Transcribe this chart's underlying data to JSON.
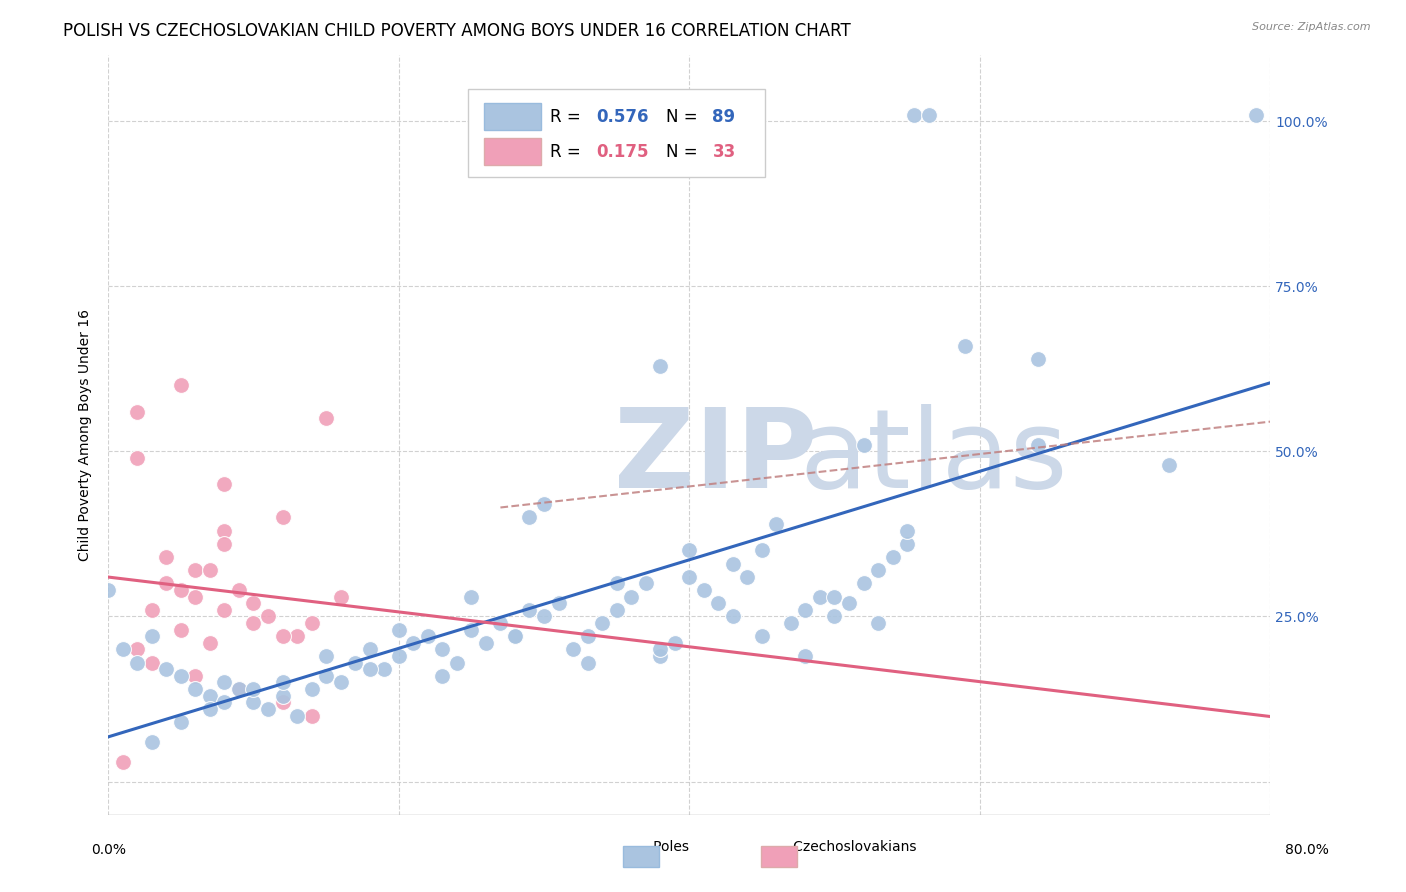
{
  "title": "POLISH VS CZECHOSLOVAKIAN CHILD POVERTY AMONG BOYS UNDER 16 CORRELATION CHART",
  "source": "Source: ZipAtlas.com",
  "ylabel": "Child Poverty Among Boys Under 16",
  "poles_R": 0.576,
  "poles_N": 89,
  "czech_R": 0.175,
  "czech_N": 33,
  "poles_color": "#aac4e0",
  "poles_line_color": "#3366bb",
  "czech_color": "#f0a0b8",
  "czech_line_color": "#e06080",
  "ci_line_color": "#c08080",
  "background_color": "#ffffff",
  "grid_color": "#cccccc",
  "watermark_color": "#ccd8e8",
  "xlim": [
    0.0,
    0.8
  ],
  "ylim": [
    -0.05,
    1.1
  ],
  "title_fontsize": 12,
  "axis_label_fontsize": 10,
  "tick_fontsize": 10,
  "legend_fontsize": 12,
  "poles_x": [
    0.555,
    0.565,
    0.79,
    0.38,
    0.59,
    0.64,
    0.52,
    0.64,
    0.73,
    0.29,
    0.0,
    0.01,
    0.02,
    0.03,
    0.04,
    0.05,
    0.06,
    0.07,
    0.08,
    0.09,
    0.1,
    0.11,
    0.12,
    0.13,
    0.14,
    0.15,
    0.16,
    0.17,
    0.18,
    0.19,
    0.2,
    0.21,
    0.22,
    0.23,
    0.24,
    0.25,
    0.26,
    0.27,
    0.28,
    0.29,
    0.3,
    0.31,
    0.32,
    0.33,
    0.34,
    0.35,
    0.36,
    0.37,
    0.38,
    0.39,
    0.4,
    0.41,
    0.42,
    0.43,
    0.44,
    0.45,
    0.46,
    0.47,
    0.48,
    0.49,
    0.5,
    0.51,
    0.52,
    0.53,
    0.54,
    0.55,
    0.3,
    0.25,
    0.18,
    0.12,
    0.08,
    0.05,
    0.03,
    0.07,
    0.1,
    0.15,
    0.2,
    0.35,
    0.4,
    0.45,
    0.5,
    0.55,
    0.43,
    0.38,
    0.33,
    0.28,
    0.23,
    0.48,
    0.53
  ],
  "poles_y": [
    1.01,
    1.01,
    1.01,
    0.63,
    0.66,
    0.64,
    0.51,
    0.51,
    0.48,
    0.4,
    0.29,
    0.2,
    0.18,
    0.22,
    0.17,
    0.16,
    0.14,
    0.13,
    0.15,
    0.14,
    0.12,
    0.11,
    0.13,
    0.1,
    0.14,
    0.16,
    0.15,
    0.18,
    0.2,
    0.17,
    0.19,
    0.21,
    0.22,
    0.2,
    0.18,
    0.23,
    0.21,
    0.24,
    0.22,
    0.26,
    0.25,
    0.27,
    0.2,
    0.22,
    0.24,
    0.26,
    0.28,
    0.3,
    0.19,
    0.21,
    0.31,
    0.29,
    0.27,
    0.33,
    0.31,
    0.35,
    0.39,
    0.24,
    0.26,
    0.28,
    0.25,
    0.27,
    0.3,
    0.32,
    0.34,
    0.36,
    0.42,
    0.28,
    0.17,
    0.15,
    0.12,
    0.09,
    0.06,
    0.11,
    0.14,
    0.19,
    0.23,
    0.3,
    0.35,
    0.22,
    0.28,
    0.38,
    0.25,
    0.2,
    0.18,
    0.22,
    0.16,
    0.19,
    0.24
  ],
  "czech_x": [
    0.05,
    0.02,
    0.15,
    0.02,
    0.08,
    0.12,
    0.08,
    0.08,
    0.04,
    0.06,
    0.09,
    0.1,
    0.14,
    0.01,
    0.03,
    0.05,
    0.07,
    0.11,
    0.13,
    0.16,
    0.04,
    0.06,
    0.08,
    0.1,
    0.12,
    0.02,
    0.03,
    0.06,
    0.09,
    0.12,
    0.14,
    0.07,
    0.05
  ],
  "czech_y": [
    0.6,
    0.56,
    0.55,
    0.49,
    0.45,
    0.4,
    0.38,
    0.36,
    0.34,
    0.32,
    0.29,
    0.27,
    0.24,
    0.03,
    0.26,
    0.23,
    0.21,
    0.25,
    0.22,
    0.28,
    0.3,
    0.28,
    0.26,
    0.24,
    0.22,
    0.2,
    0.18,
    0.16,
    0.14,
    0.12,
    0.1,
    0.32,
    0.29
  ]
}
